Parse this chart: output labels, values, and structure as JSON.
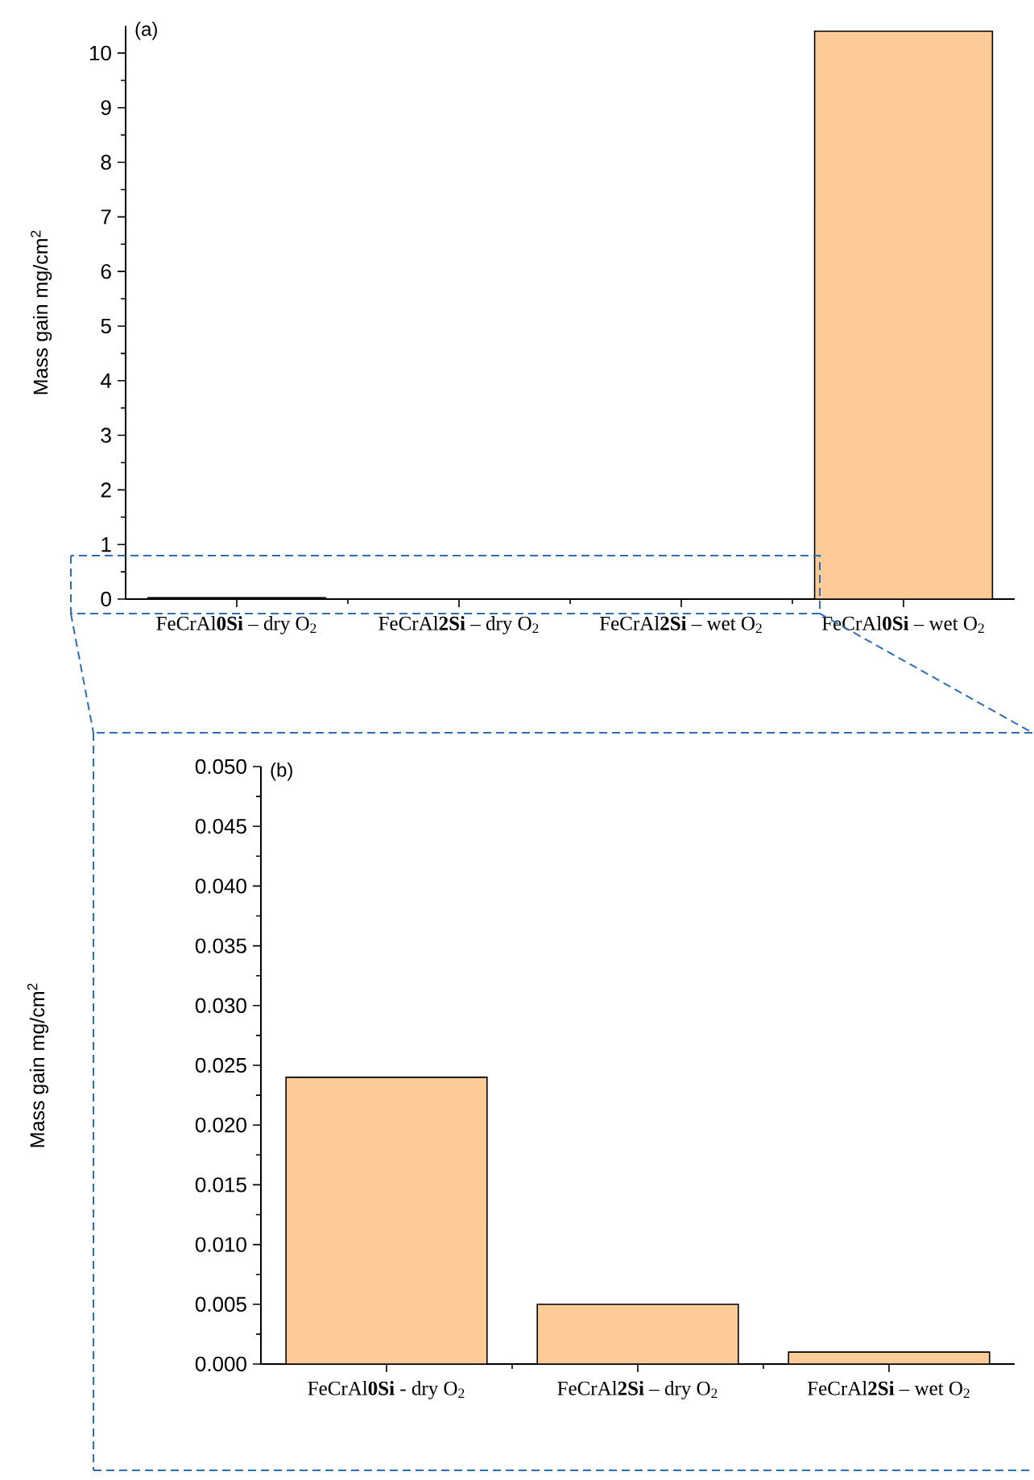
{
  "chart_data": [
    {
      "type": "bar",
      "title": "(a)",
      "ylabel": "Mass gain mg/cm$^{2}$",
      "categories": [
        "FeCrAl**0Si** – dry O$_{2}$",
        "FeCrAl**2Si** – dry O$_{2}$",
        "FeCrAl**2Si** – wet O$_{2}$",
        "FeCrAl**0Si** – wet O$_{2}$"
      ],
      "values": [
        0.024,
        null,
        null,
        10.4
      ],
      "color": "#fdcb97",
      "ylim": [
        0,
        10.5
      ],
      "yticks": [
        0,
        1,
        2,
        3,
        4,
        5,
        6,
        7,
        8,
        9,
        10
      ]
    },
    {
      "type": "bar",
      "title": "(b)",
      "ylabel": "Mass gain mg/cm$^{2}$",
      "categories": [
        "FeCrAl**0Si** - dry O$_{2}$",
        "FeCrAl**2Si** – dry O$_{2}$",
        "FeCrAl**2Si** – wet O$_{2}$"
      ],
      "values": [
        0.024,
        0.005,
        0.001
      ],
      "color": "#fdcb97",
      "ylim": [
        0,
        0.05
      ],
      "yticks": [
        {
          "value": 0,
          "label": "0.000"
        },
        {
          "value": 0.005,
          "label": "0.005"
        },
        {
          "value": 0.01,
          "label": "0.010"
        },
        {
          "value": 0.015,
          "label": "0.015"
        },
        {
          "value": 0.02,
          "label": "0.020"
        },
        {
          "value": 0.025,
          "label": "0.025"
        },
        {
          "value": 0.03,
          "label": "0.030"
        },
        {
          "value": 0.035,
          "label": "0.035"
        },
        {
          "value": 0.04,
          "label": "0.040"
        },
        {
          "value": 0.045,
          "label": "0.045"
        },
        {
          "value": 0.05,
          "label": "0.050"
        }
      ]
    }
  ]
}
